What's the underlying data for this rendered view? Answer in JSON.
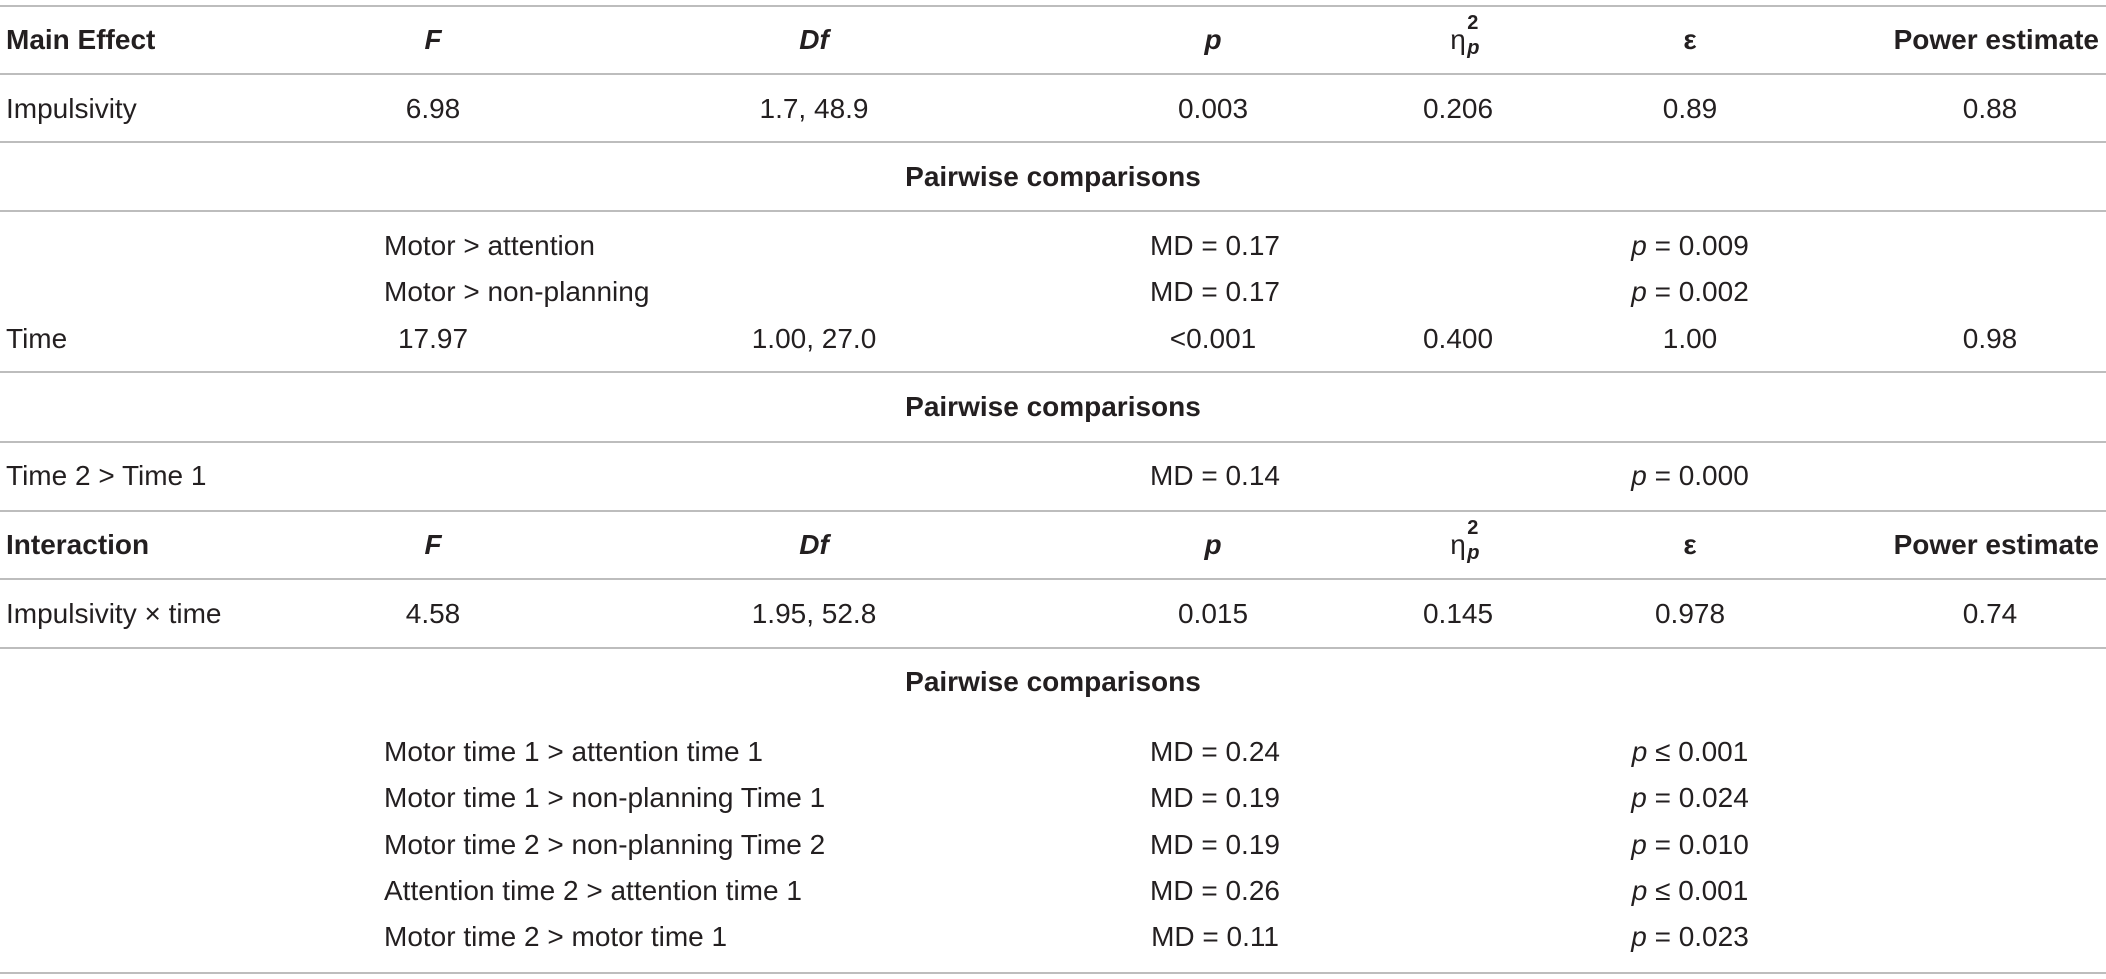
{
  "columns": {
    "main_effect": "Main Effect",
    "interaction": "Interaction",
    "F": "F",
    "Df": "Df",
    "p": "p",
    "eta_base": "η",
    "eta_sup": "2",
    "eta_sub": "p",
    "epsilon": "ε",
    "power": "Power estimate"
  },
  "pairwise_label": "Pairwise comparisons",
  "rows": {
    "impulsivity": {
      "label": "Impulsivity",
      "F": "6.98",
      "Df": "1.7, 48.9",
      "p": "0.003",
      "eta": "0.206",
      "epsilon": "0.89",
      "power": "0.88"
    },
    "time": {
      "label": "Time",
      "F": "17.97",
      "Df": "1.00, 27.0",
      "p": "<0.001",
      "eta": "0.400",
      "epsilon": "1.00",
      "power": "0.98"
    },
    "interaction": {
      "label": "Impulsivity × time",
      "F": "4.58",
      "Df": "1.95, 52.8",
      "p": "0.015",
      "eta": "0.145",
      "epsilon": "0.978",
      "power": "0.74"
    }
  },
  "pairwise_impulsivity": [
    {
      "comparison": "Motor > attention",
      "md": "MD = 0.17",
      "p_prefix": "p",
      "p_value": " = 0.009"
    },
    {
      "comparison": "Motor > non-planning",
      "md": "MD = 0.17",
      "p_prefix": "p",
      "p_value": " = 0.002"
    }
  ],
  "pairwise_time": [
    {
      "comparison": "Time 2 > Time 1",
      "md": "MD = 0.14",
      "p_prefix": "p",
      "p_value": " = 0.000"
    }
  ],
  "pairwise_interaction": [
    {
      "comparison": "Motor time 1 > attention time 1",
      "md": "MD = 0.24",
      "p_prefix": "p",
      "p_value": " ≤ 0.001"
    },
    {
      "comparison": "Motor time 1 > non-planning Time 1",
      "md": "MD = 0.19",
      "p_prefix": "p",
      "p_value": " = 0.024"
    },
    {
      "comparison": "Motor time 2 > non-planning Time 2",
      "md": "MD = 0.19",
      "p_prefix": "p",
      "p_value": " = 0.010"
    },
    {
      "comparison": "Attention time 2 > attention time 1",
      "md": "MD = 0.26",
      "p_prefix": "p",
      "p_value": " ≤ 0.001"
    },
    {
      "comparison": "Motor time 2 > motor time 1",
      "md": "MD = 0.11",
      "p_prefix": "p",
      "p_value": " = 0.023"
    }
  ]
}
